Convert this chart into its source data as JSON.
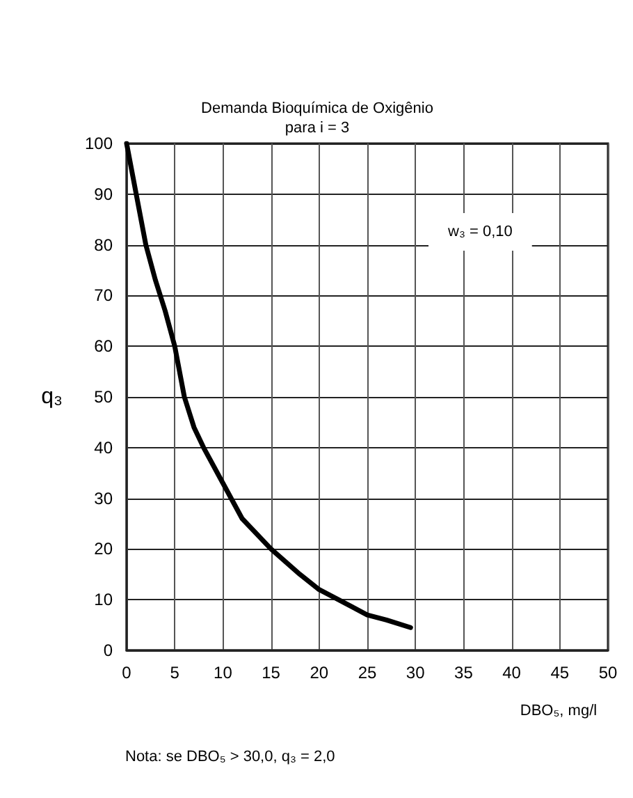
{
  "chart_data": {
    "type": "line",
    "title": "Demanda Bioquímica de Oxigênio\npara i = 3",
    "xlabel": "DBO₅, mg/l",
    "ylabel": "q₃",
    "annotations": [
      "w₃ = 0,10",
      "Nota: se DBO₅ > 30,0, q₃ = 2,0"
    ],
    "x": [
      0,
      1,
      2,
      3,
      4,
      5,
      6,
      7,
      8,
      10,
      12,
      15,
      18,
      20,
      22,
      25,
      27,
      29.5
    ],
    "series": [
      {
        "color": "#000000",
        "values": [
          100,
          90,
          80,
          73,
          67,
          60,
          50,
          44,
          40,
          33,
          26,
          20,
          15,
          12,
          10,
          7,
          6,
          4.5
        ]
      }
    ],
    "xlim": [
      0,
      50
    ],
    "xticks": [
      0,
      5,
      10,
      15,
      20,
      25,
      30,
      35,
      40,
      45,
      50
    ],
    "ylim": [
      0,
      100
    ],
    "yticks": [
      0,
      10,
      20,
      30,
      40,
      50,
      60,
      70,
      80,
      90,
      100
    ],
    "grid": true,
    "marker": "none",
    "line_style": "solid"
  }
}
